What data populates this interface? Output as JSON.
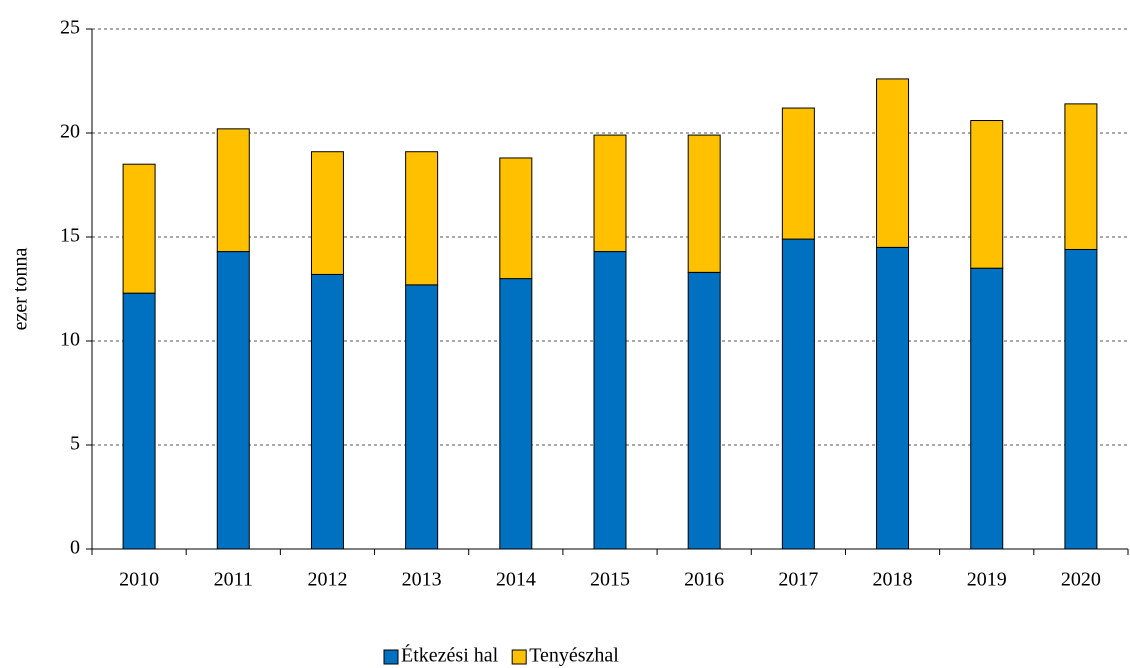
{
  "chart_data": {
    "type": "stacked_bar",
    "y_label": "ezer tonna",
    "categories": [
      "2010",
      "2011",
      "2012",
      "2013",
      "2014",
      "2015",
      "2016",
      "2017",
      "2018",
      "2019",
      "2020"
    ],
    "series": [
      {
        "name": "Étkezési hal",
        "color": "#0070c0",
        "values": [
          12.3,
          14.3,
          13.2,
          12.7,
          13.0,
          14.3,
          13.3,
          14.9,
          14.5,
          13.5,
          14.4
        ]
      },
      {
        "name": "Tenyészhal",
        "color": "#ffc000",
        "values": [
          6.2,
          5.9,
          5.9,
          6.4,
          5.8,
          5.6,
          6.6,
          6.3,
          8.1,
          7.1,
          7.0
        ]
      }
    ],
    "ylim": [
      0,
      25
    ],
    "yticks": [
      0,
      5,
      10,
      15,
      20,
      25
    ],
    "grid": true,
    "legend": "bottom"
  }
}
